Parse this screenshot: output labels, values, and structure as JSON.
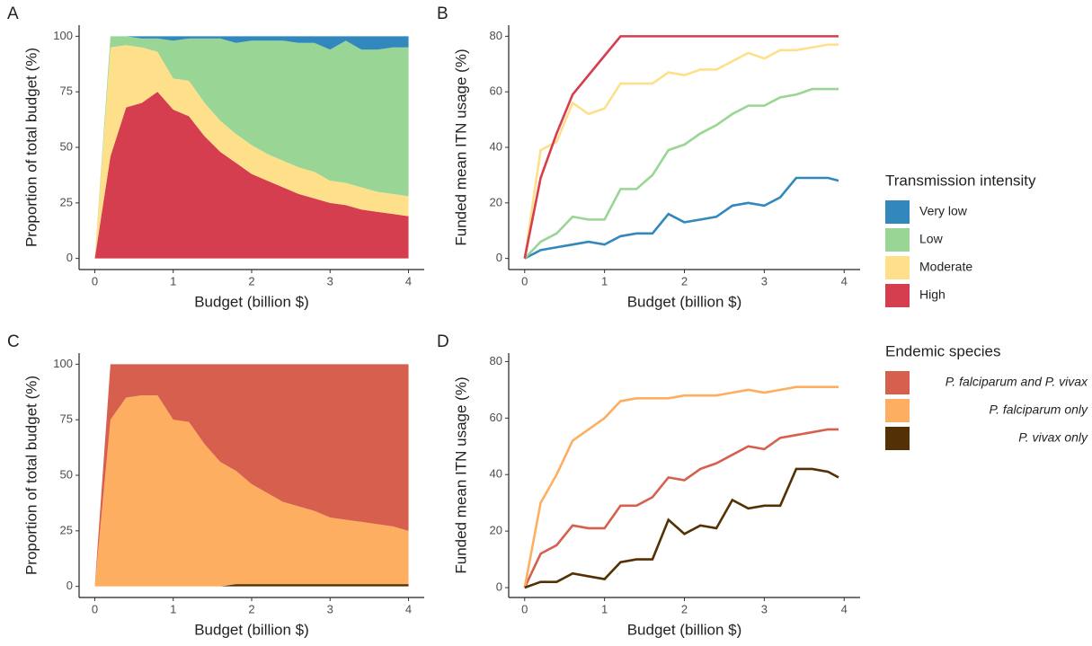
{
  "chart_data": [
    {
      "type": "area",
      "panel_label": "A",
      "x_label": "Budget (billion $)",
      "y_label": "Proportion of total budget (%)",
      "x": [
        0,
        0.2,
        0.4,
        0.6,
        0.8,
        1.0,
        1.2,
        1.4,
        1.6,
        1.8,
        2.0,
        2.2,
        2.4,
        2.6,
        2.8,
        3.0,
        3.2,
        3.4,
        3.6,
        3.8,
        4.0
      ],
      "xlim": [
        -0.2,
        4.2
      ],
      "xticks": [
        0,
        1,
        2,
        3,
        4
      ],
      "ylim": [
        -5,
        105
      ],
      "yticks": [
        0,
        25,
        50,
        75,
        100
      ],
      "series": [
        {
          "name": "Very low",
          "color": "#3288bd",
          "values": [
            0,
            0,
            0,
            1,
            1,
            2,
            1,
            1,
            1,
            3,
            2,
            2,
            2,
            3,
            3,
            6,
            2,
            6,
            6,
            5,
            5
          ]
        },
        {
          "name": "Low",
          "color": "#99d594",
          "values": [
            0,
            5,
            4,
            4,
            6,
            17,
            19,
            29,
            37,
            41,
            47,
            51,
            54,
            56,
            58,
            59,
            64,
            62,
            64,
            66,
            67
          ]
        },
        {
          "name": "Moderate",
          "color": "#fee08b",
          "values": [
            0,
            49,
            28,
            25,
            18,
            14,
            16,
            15,
            14,
            13,
            13,
            12,
            12,
            12,
            12,
            10,
            10,
            10,
            9,
            9,
            9
          ]
        },
        {
          "name": "High",
          "color": "#d53e4f",
          "values": [
            0,
            46,
            68,
            70,
            75,
            67,
            64,
            55,
            48,
            43,
            38,
            35,
            32,
            29,
            27,
            25,
            24,
            22,
            21,
            20,
            19
          ]
        }
      ]
    },
    {
      "type": "line",
      "panel_label": "B",
      "x_label": "Budget (billion $)",
      "y_label": "Funded mean ITN usage (%)",
      "x": [
        0,
        0.2,
        0.4,
        0.6,
        0.8,
        1.0,
        1.2,
        1.4,
        1.6,
        1.8,
        2.0,
        2.2,
        2.4,
        2.6,
        2.8,
        3.0,
        3.2,
        3.4,
        3.6,
        3.8,
        3.93
      ],
      "xlim": [
        -0.2,
        4.2
      ],
      "xticks": [
        0,
        1,
        2,
        3,
        4
      ],
      "ylim": [
        -4,
        84
      ],
      "yticks": [
        0,
        20,
        40,
        60,
        80
      ],
      "legend_title": "Transmission intensity",
      "legend": "right",
      "series": [
        {
          "name": "Very low",
          "color": "#3288bd",
          "values": [
            0,
            3,
            4,
            5,
            6,
            5,
            8,
            9,
            9,
            16,
            13,
            14,
            15,
            19,
            20,
            19,
            22,
            29,
            29,
            29,
            28
          ]
        },
        {
          "name": "Low",
          "color": "#99d594",
          "values": [
            0,
            6,
            9,
            15,
            14,
            14,
            25,
            25,
            30,
            39,
            41,
            45,
            48,
            52,
            55,
            55,
            58,
            59,
            61,
            61,
            61
          ]
        },
        {
          "name": "Moderate",
          "color": "#fee08b",
          "values": [
            0,
            39,
            42,
            56,
            52,
            54,
            63,
            63,
            63,
            67,
            66,
            68,
            68,
            71,
            74,
            72,
            75,
            75,
            76,
            77,
            77
          ]
        },
        {
          "name": "High",
          "color": "#d53e4f",
          "values": [
            0,
            29,
            45,
            59,
            66,
            73,
            80,
            80,
            80,
            80,
            80,
            80,
            80,
            80,
            80,
            80,
            80,
            80,
            80,
            80,
            80
          ]
        }
      ]
    },
    {
      "type": "area",
      "panel_label": "C",
      "x_label": "Budget (billion $)",
      "y_label": "Proportion of total budget (%)",
      "x": [
        0,
        0.2,
        0.4,
        0.6,
        0.8,
        1.0,
        1.2,
        1.4,
        1.6,
        1.8,
        2.0,
        2.2,
        2.4,
        2.6,
        2.8,
        3.0,
        3.2,
        3.4,
        3.6,
        3.8,
        4.0
      ],
      "xlim": [
        -0.2,
        4.2
      ],
      "xticks": [
        0,
        1,
        2,
        3,
        4
      ],
      "ylim": [
        -5,
        105
      ],
      "yticks": [
        0,
        25,
        50,
        75,
        100
      ],
      "series": [
        {
          "name": "P. falciparum and P. vivax",
          "color": "#d6604d",
          "values": [
            0,
            25,
            15,
            14,
            14,
            25,
            26,
            36,
            44,
            48,
            54,
            58,
            62,
            64,
            66,
            69,
            70,
            71,
            72,
            73,
            75
          ]
        },
        {
          "name": "P. falciparum only",
          "color": "#fdae61",
          "values": [
            0,
            75,
            85,
            86,
            86,
            75,
            74,
            64,
            56,
            51,
            45,
            41,
            37,
            35,
            33,
            30,
            29,
            28,
            27,
            26,
            24
          ]
        },
        {
          "name": "P. vivax only",
          "color": "#543005",
          "values": [
            0,
            0,
            0,
            0,
            0,
            0,
            0,
            0,
            0,
            1,
            1,
            1,
            1,
            1,
            1,
            1,
            1,
            1,
            1,
            1,
            1
          ]
        }
      ]
    },
    {
      "type": "line",
      "panel_label": "D",
      "x_label": "Budget (billion $)",
      "y_label": "Funded mean ITN usage (%)",
      "x": [
        0,
        0.2,
        0.4,
        0.6,
        0.8,
        1.0,
        1.2,
        1.4,
        1.6,
        1.8,
        2.0,
        2.2,
        2.4,
        2.6,
        2.8,
        3.0,
        3.2,
        3.4,
        3.6,
        3.8,
        3.93
      ],
      "xlim": [
        -0.2,
        4.2
      ],
      "xticks": [
        0,
        1,
        2,
        3,
        4
      ],
      "ylim": [
        -3.5,
        83
      ],
      "yticks": [
        0,
        20,
        40,
        60,
        80
      ],
      "legend_title": "Endemic species",
      "legend": "right",
      "series": [
        {
          "name": "P. falciparum and P. vivax",
          "color": "#d6604d",
          "values": [
            0,
            12,
            15,
            22,
            21,
            21,
            29,
            29,
            32,
            39,
            38,
            42,
            44,
            47,
            50,
            49,
            53,
            54,
            55,
            56,
            56
          ]
        },
        {
          "name": "P. falciparum only",
          "color": "#fdae61",
          "values": [
            0,
            30,
            40,
            52,
            56,
            60,
            66,
            67,
            67,
            67,
            68,
            68,
            68,
            69,
            70,
            69,
            70,
            71,
            71,
            71,
            71
          ]
        },
        {
          "name": "P. vivax only",
          "color": "#543005",
          "values": [
            0,
            2,
            2,
            5,
            4,
            3,
            9,
            10,
            10,
            24,
            19,
            22,
            21,
            31,
            28,
            29,
            29,
            42,
            42,
            41,
            39
          ]
        }
      ]
    }
  ]
}
